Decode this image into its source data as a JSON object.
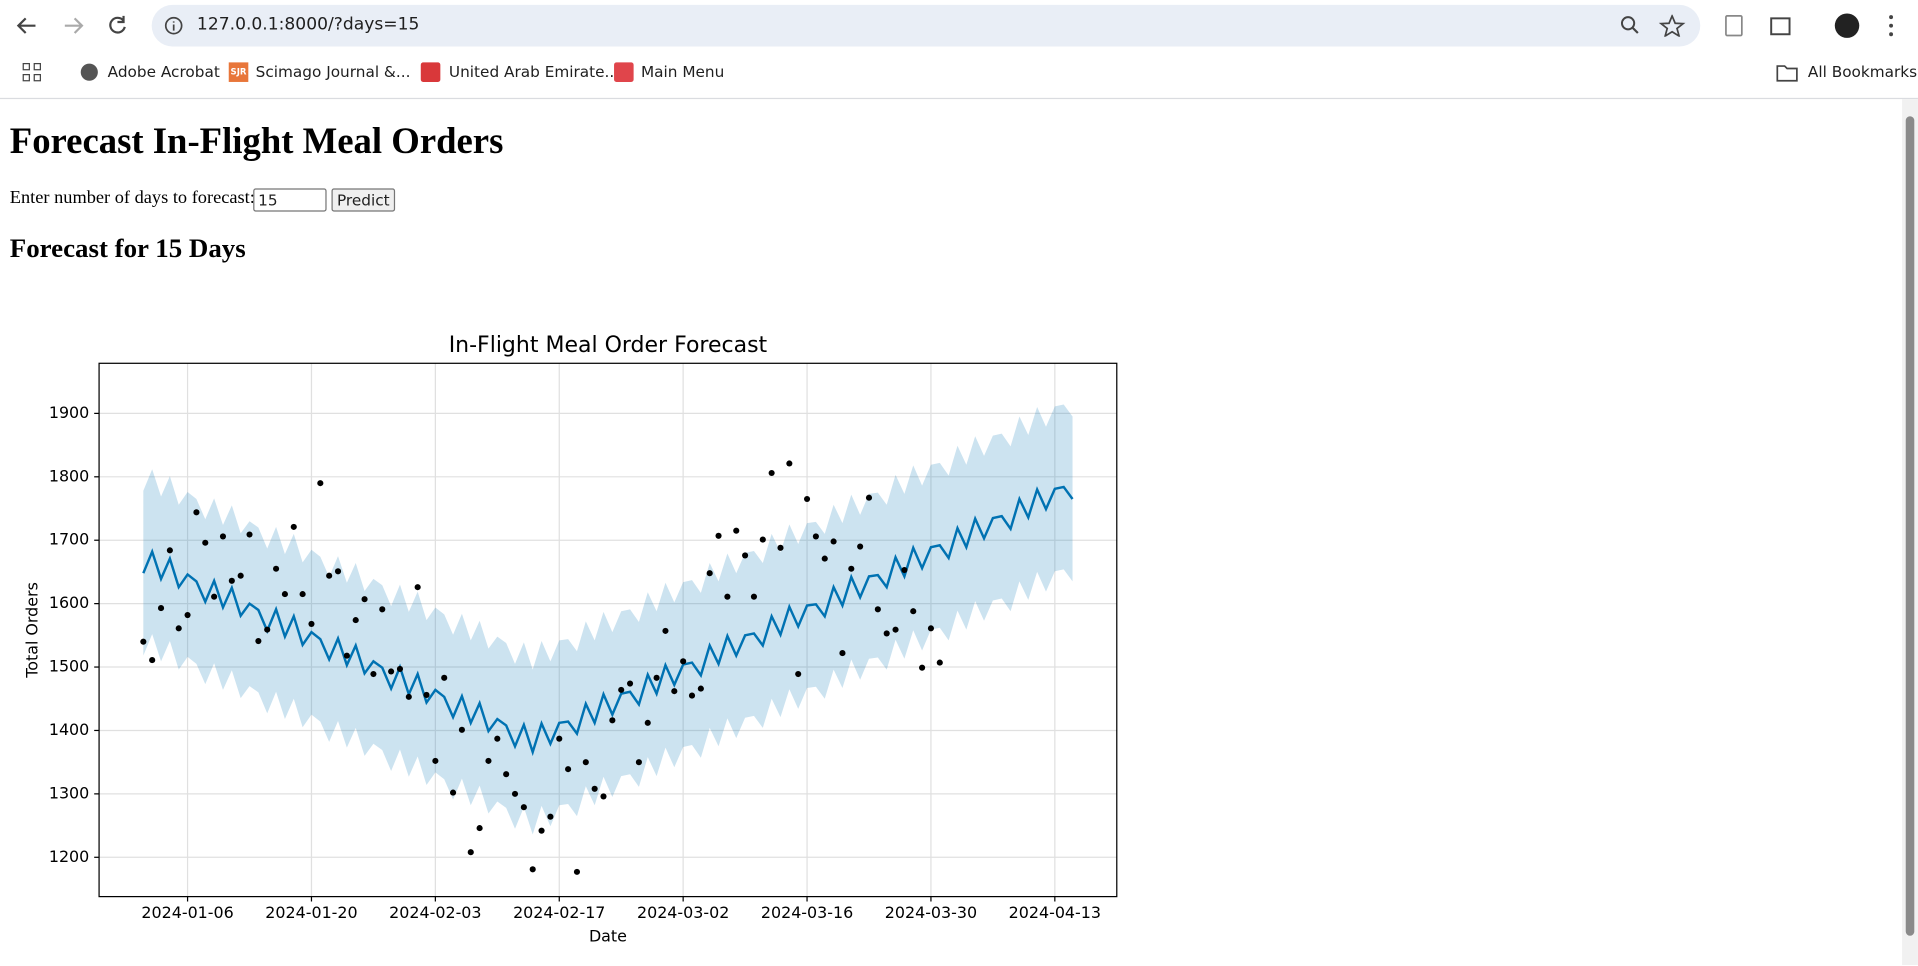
{
  "browser": {
    "url": "127.0.0.1:8000/?days=15",
    "bookmarks": [
      {
        "name": "Adobe Acrobat"
      },
      {
        "name": "Scimago Journal &...",
        "icon_text": "SJR"
      },
      {
        "name": "United Arab Emirate..."
      },
      {
        "name": "Main Menu"
      }
    ],
    "all_bookmarks": "All Bookmarks"
  },
  "page": {
    "title": "Forecast In-Flight Meal Orders",
    "input_label": "Enter number of days to forecast:",
    "input_value": "15",
    "button": "Predict",
    "subtitle": "Forecast for 15 Days"
  },
  "chart_data": {
    "type": "forecast",
    "title": "In-Flight Meal Order Forecast",
    "xlabel": "Date",
    "ylabel": "Total Orders",
    "x": [
      "2024-01-01",
      "2024-01-02",
      "2024-01-03",
      "2024-01-04",
      "2024-01-05",
      "2024-01-06",
      "2024-01-07",
      "2024-01-08",
      "2024-01-09",
      "2024-01-10",
      "2024-01-11",
      "2024-01-12",
      "2024-01-13",
      "2024-01-14",
      "2024-01-15",
      "2024-01-16",
      "2024-01-17",
      "2024-01-18",
      "2024-01-19",
      "2024-01-20",
      "2024-01-21",
      "2024-01-22",
      "2024-01-23",
      "2024-01-24",
      "2024-01-25",
      "2024-01-26",
      "2024-01-27",
      "2024-01-28",
      "2024-01-29",
      "2024-01-30",
      "2024-01-31",
      "2024-02-01",
      "2024-02-02",
      "2024-02-03",
      "2024-02-04",
      "2024-02-05",
      "2024-02-06",
      "2024-02-07",
      "2024-02-08",
      "2024-02-09",
      "2024-02-10",
      "2024-02-11",
      "2024-02-12",
      "2024-02-13",
      "2024-02-14",
      "2024-02-15",
      "2024-02-16",
      "2024-02-17",
      "2024-02-18",
      "2024-02-19",
      "2024-02-20",
      "2024-02-21",
      "2024-02-22",
      "2024-02-23",
      "2024-02-24",
      "2024-02-25",
      "2024-02-26",
      "2024-02-27",
      "2024-02-28",
      "2024-02-29",
      "2024-03-01",
      "2024-03-02",
      "2024-03-03",
      "2024-03-04",
      "2024-03-05",
      "2024-03-06",
      "2024-03-07",
      "2024-03-08",
      "2024-03-09",
      "2024-03-10",
      "2024-03-11",
      "2024-03-12",
      "2024-03-13",
      "2024-03-14",
      "2024-03-15",
      "2024-03-16",
      "2024-03-17",
      "2024-03-18",
      "2024-03-19",
      "2024-03-20",
      "2024-03-21",
      "2024-03-22",
      "2024-03-23",
      "2024-03-24",
      "2024-03-25",
      "2024-03-26",
      "2024-03-27",
      "2024-03-28",
      "2024-03-29",
      "2024-03-30",
      "2024-03-31",
      "2024-04-01",
      "2024-04-02",
      "2024-04-03",
      "2024-04-04",
      "2024-04-05",
      "2024-04-06",
      "2024-04-07",
      "2024-04-08",
      "2024-04-09",
      "2024-04-10",
      "2024-04-11",
      "2024-04-12",
      "2024-04-13",
      "2024-04-14",
      "2024-04-15"
    ],
    "series": [
      {
        "kind": "scatter",
        "color": "#000000",
        "values": [
          1540,
          1511,
          1593,
          1684,
          1561,
          1582,
          1744,
          1696,
          1611,
          1706,
          1636,
          1644,
          1709,
          1541,
          1559,
          1655,
          1615,
          1721,
          1615,
          1568,
          1790,
          1644,
          1651,
          1518,
          1574,
          1607,
          1489,
          1591,
          1493,
          1497,
          1453,
          1626,
          1456,
          1352,
          1483,
          1302,
          1401,
          1208,
          1246,
          1352,
          1387,
          1331,
          1300,
          1279,
          1181,
          1242,
          1264,
          1387,
          1339,
          1177,
          1350,
          1308,
          1296,
          1416,
          1464,
          1474,
          1350,
          1412,
          1483,
          1557,
          1462,
          1509,
          1455,
          1466,
          1648,
          1707,
          1611,
          1715,
          1676,
          1611,
          1701,
          1806,
          1688,
          1821,
          1489,
          1765,
          1706,
          1671,
          1698,
          1522,
          1655,
          1690,
          1767,
          1591,
          1553,
          1559,
          1653,
          1588,
          1499,
          1561,
          1507,
          null,
          null,
          null,
          null,
          null,
          null,
          null,
          null,
          null,
          null,
          null,
          null,
          null,
          null,
          null
        ]
      },
      {
        "kind": "line",
        "color": "#0072b2",
        "values": [
          1648,
          1682,
          1639,
          1671,
          1626,
          1646,
          1635,
          1603,
          1636,
          1594,
          1625,
          1581,
          1600,
          1590,
          1557,
          1591,
          1548,
          1580,
          1535,
          1555,
          1544,
          1512,
          1545,
          1503,
          1534,
          1490,
          1509,
          1499,
          1466,
          1500,
          1457,
          1489,
          1444,
          1464,
          1453,
          1421,
          1454,
          1412,
          1443,
          1399,
          1418,
          1408,
          1375,
          1409,
          1366,
          1411,
          1379,
          1412,
          1414,
          1395,
          1442,
          1412,
          1457,
          1425,
          1458,
          1461,
          1441,
          1488,
          1458,
          1503,
          1472,
          1504,
          1507,
          1487,
          1534,
          1505,
          1549,
          1518,
          1550,
          1553,
          1534,
          1580,
          1551,
          1595,
          1564,
          1597,
          1599,
          1580,
          1626,
          1597,
          1642,
          1610,
          1643,
          1645,
          1626,
          1673,
          1643,
          1688,
          1656,
          1689,
          1692,
          1672,
          1719,
          1689,
          1734,
          1703,
          1735,
          1738,
          1718,
          1765,
          1736,
          1780,
          1749,
          1781,
          1784,
          1765
        ]
      },
      {
        "kind": "band",
        "color": "#0072b2",
        "upper": [
          1778,
          1812,
          1769,
          1801,
          1756,
          1776,
          1765,
          1733,
          1766,
          1724,
          1755,
          1711,
          1730,
          1720,
          1687,
          1721,
          1678,
          1710,
          1665,
          1685,
          1674,
          1642,
          1675,
          1633,
          1664,
          1620,
          1639,
          1629,
          1596,
          1630,
          1587,
          1619,
          1574,
          1594,
          1583,
          1551,
          1584,
          1542,
          1573,
          1529,
          1548,
          1538,
          1505,
          1539,
          1496,
          1541,
          1509,
          1542,
          1544,
          1525,
          1572,
          1542,
          1587,
          1555,
          1588,
          1591,
          1571,
          1618,
          1588,
          1633,
          1602,
          1634,
          1637,
          1617,
          1664,
          1635,
          1679,
          1648,
          1680,
          1683,
          1664,
          1710,
          1681,
          1725,
          1694,
          1727,
          1729,
          1710,
          1756,
          1727,
          1772,
          1740,
          1773,
          1775,
          1756,
          1803,
          1773,
          1818,
          1786,
          1819,
          1822,
          1802,
          1849,
          1819,
          1864,
          1833,
          1865,
          1868,
          1848,
          1895,
          1866,
          1910,
          1879,
          1911,
          1914,
          1895
        ],
        "lower": [
          1518,
          1552,
          1509,
          1541,
          1496,
          1516,
          1505,
          1473,
          1506,
          1464,
          1495,
          1451,
          1470,
          1460,
          1427,
          1461,
          1418,
          1450,
          1405,
          1425,
          1414,
          1382,
          1415,
          1373,
          1404,
          1360,
          1379,
          1369,
          1336,
          1370,
          1327,
          1359,
          1314,
          1334,
          1323,
          1291,
          1324,
          1282,
          1313,
          1269,
          1288,
          1278,
          1245,
          1279,
          1236,
          1281,
          1249,
          1282,
          1284,
          1265,
          1312,
          1282,
          1327,
          1295,
          1328,
          1331,
          1311,
          1358,
          1328,
          1373,
          1342,
          1374,
          1377,
          1357,
          1404,
          1375,
          1419,
          1388,
          1420,
          1423,
          1404,
          1450,
          1421,
          1465,
          1434,
          1467,
          1469,
          1450,
          1496,
          1467,
          1512,
          1480,
          1513,
          1515,
          1496,
          1543,
          1513,
          1558,
          1526,
          1559,
          1562,
          1542,
          1589,
          1559,
          1604,
          1573,
          1605,
          1608,
          1588,
          1635,
          1606,
          1650,
          1619,
          1651,
          1654,
          1635
        ]
      }
    ],
    "xlim": [
      "2023-12-27",
      "2024-04-20"
    ],
    "xticks": [
      "2024-01-06",
      "2024-01-20",
      "2024-02-03",
      "2024-02-17",
      "2024-03-02",
      "2024-03-16",
      "2024-03-30",
      "2024-04-13"
    ],
    "ylim": [
      1138,
      1979
    ],
    "yticks": [
      1200,
      1300,
      1400,
      1500,
      1600,
      1700,
      1800,
      1900
    ],
    "grid": true
  }
}
